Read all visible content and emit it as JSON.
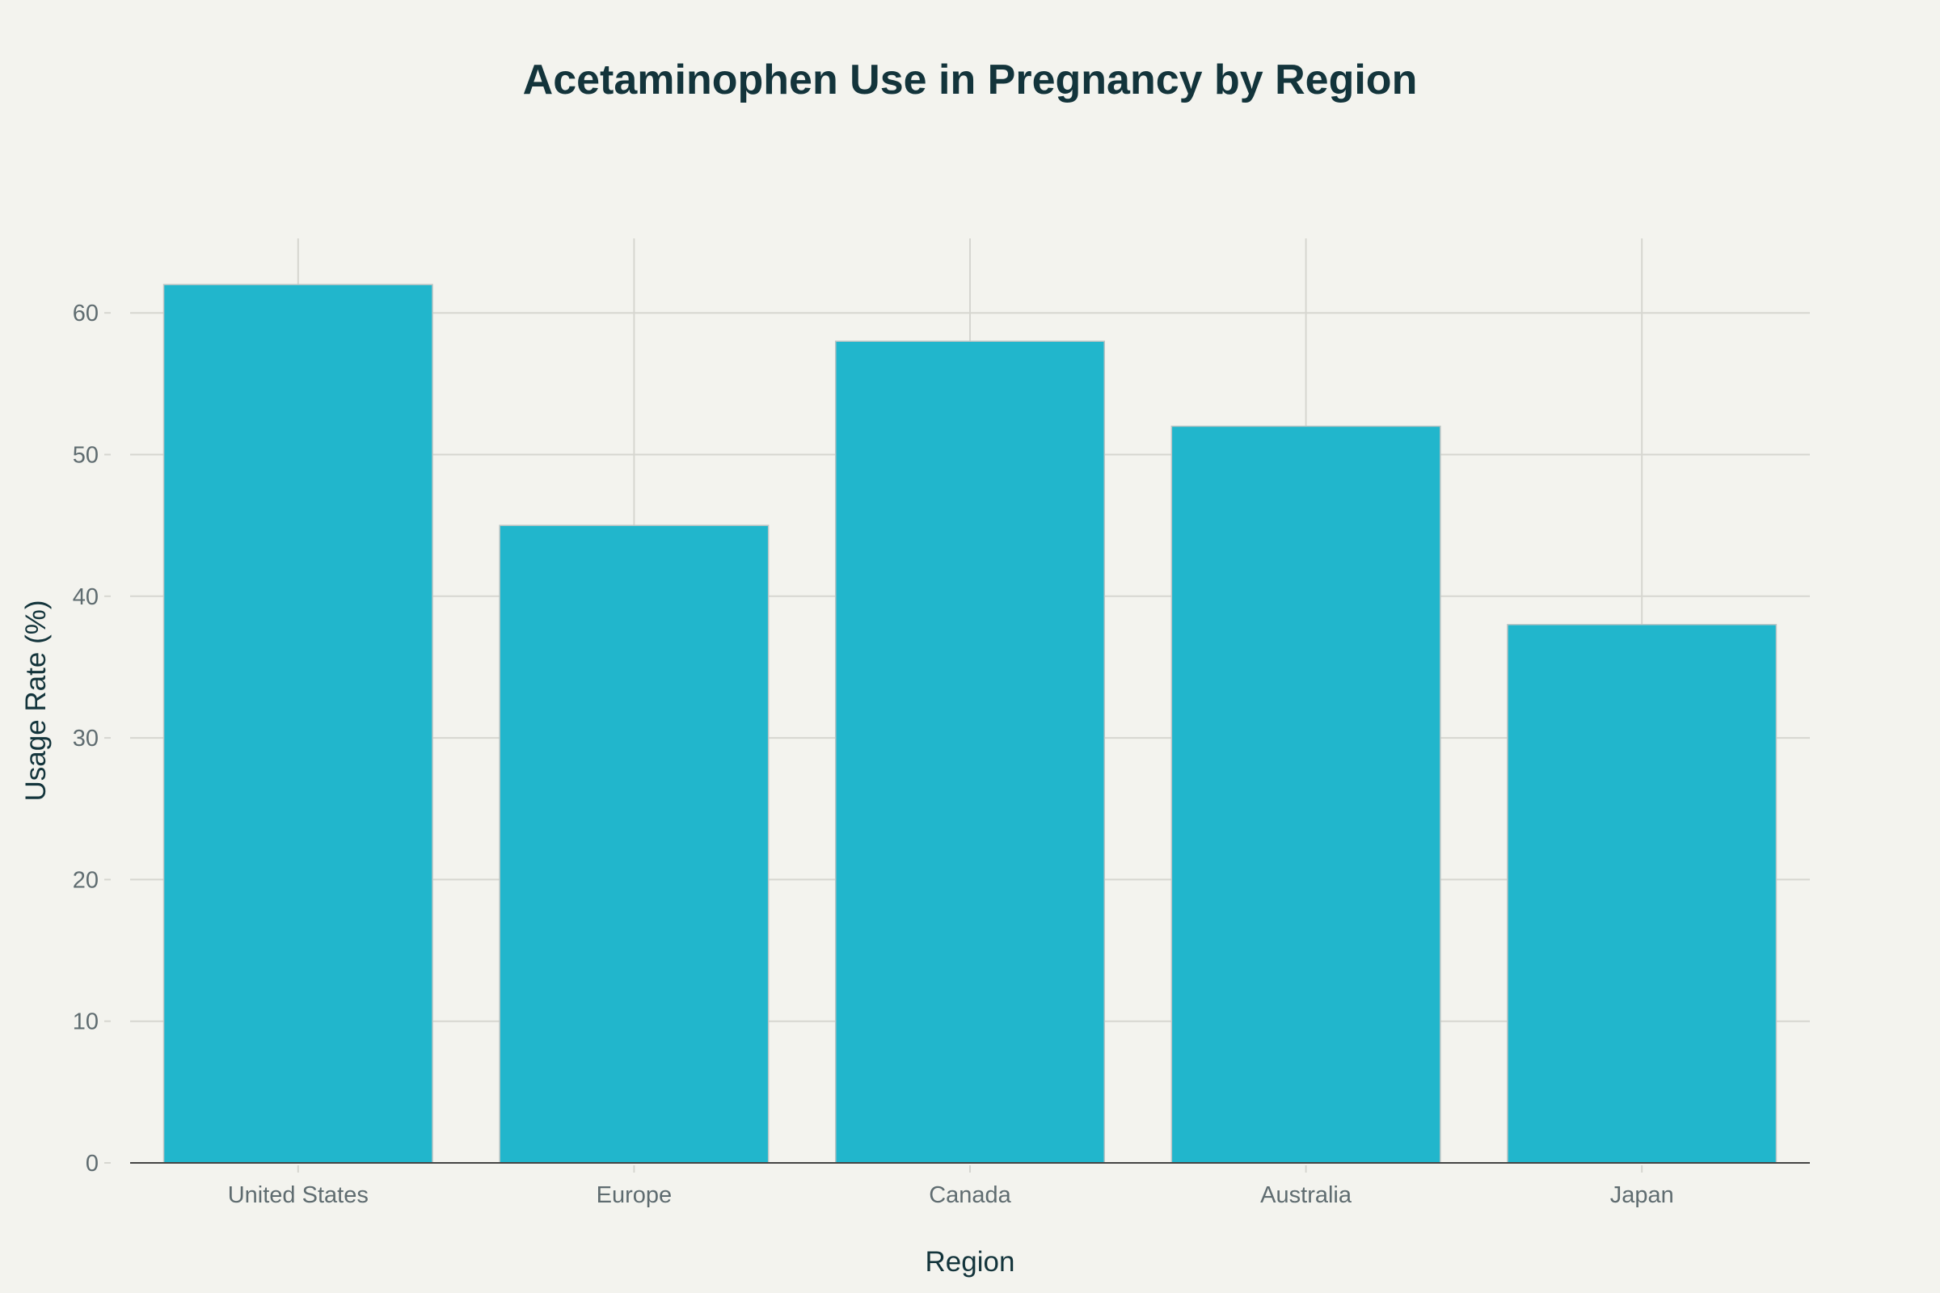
{
  "chart_data": {
    "type": "bar",
    "title": "Acetaminophen Use in Pregnancy by Region",
    "xlabel": "Region",
    "ylabel": "Usage Rate (%)",
    "categories": [
      "United States",
      "Europe",
      "Canada",
      "Australia",
      "Japan"
    ],
    "values": [
      62,
      45,
      58,
      52,
      38
    ],
    "ylim": [
      0,
      65
    ],
    "yticks": [
      "0",
      "10",
      "20",
      "30",
      "40",
      "50",
      "60"
    ],
    "grid": true,
    "bar_color": "#21b6cc",
    "background_color": "#f3f3ee"
  }
}
